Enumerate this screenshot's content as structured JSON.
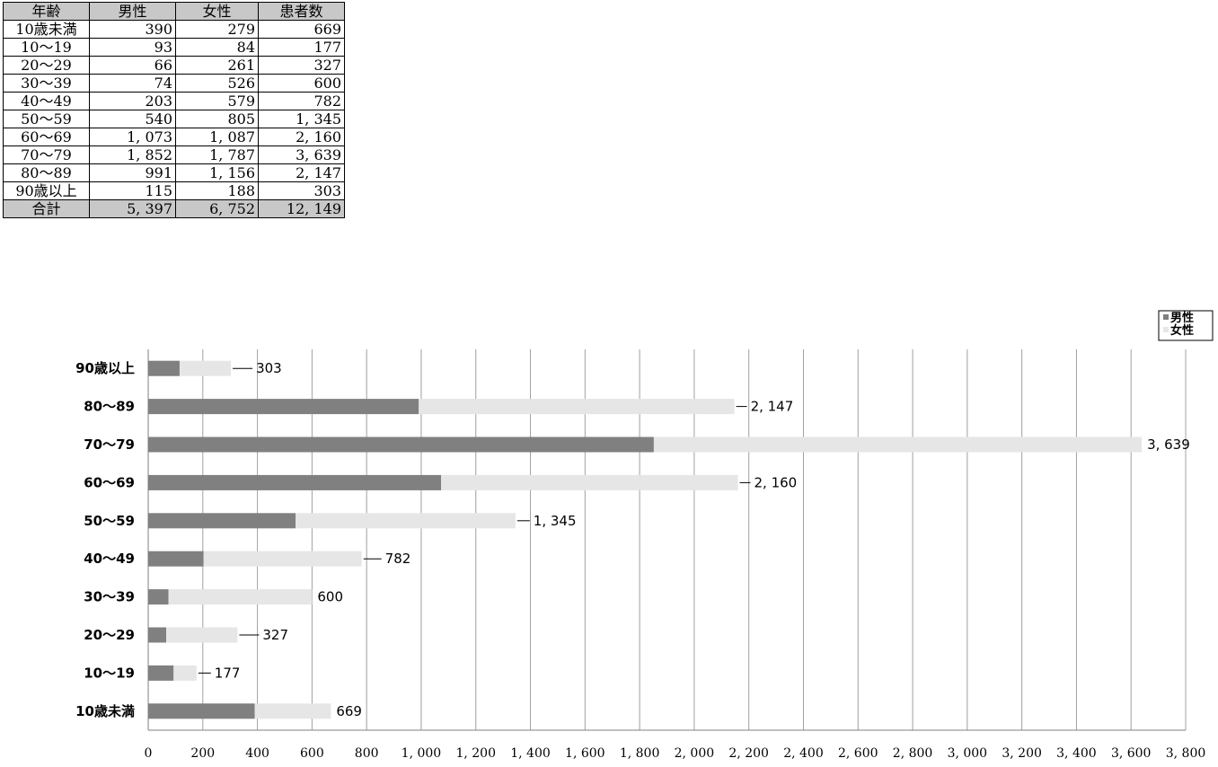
{
  "table": {
    "headers": [
      "年齢",
      "男性",
      "女性",
      "患者数"
    ],
    "rows": [
      {
        "age": "10歳未満",
        "male": "390",
        "female": "279",
        "total": "669"
      },
      {
        "age": "10～19",
        "male": "93",
        "female": "84",
        "total": "177"
      },
      {
        "age": "20～29",
        "male": "66",
        "female": "261",
        "total": "327"
      },
      {
        "age": "30～39",
        "male": "74",
        "female": "526",
        "total": "600"
      },
      {
        "age": "40～49",
        "male": "203",
        "female": "579",
        "total": "782"
      },
      {
        "age": "50～59",
        "male": "540",
        "female": "805",
        "total": "1, 345"
      },
      {
        "age": "60～69",
        "male": "1, 073",
        "female": "1, 087",
        "total": "2, 160"
      },
      {
        "age": "70～79",
        "male": "1, 852",
        "female": "1, 787",
        "total": "3, 639"
      },
      {
        "age": "80～89",
        "male": "991",
        "female": "1, 156",
        "total": "2, 147"
      },
      {
        "age": "90歳以上",
        "male": "115",
        "female": "188",
        "total": "303"
      }
    ],
    "total_row": {
      "age": "合計",
      "male": "5, 397",
      "female": "6, 752",
      "total": "12, 149"
    }
  },
  "chart_data": {
    "type": "bar",
    "orientation": "horizontal",
    "stacked": true,
    "categories": [
      "10歳未満",
      "10～19",
      "20～29",
      "30～39",
      "40～49",
      "50～59",
      "60～69",
      "70～79",
      "80～89",
      "90歳以上"
    ],
    "series": [
      {
        "name": "男性",
        "values": [
          390,
          93,
          66,
          74,
          203,
          540,
          1073,
          1852,
          991,
          115
        ],
        "color": "#808080"
      },
      {
        "name": "女性",
        "values": [
          279,
          84,
          261,
          526,
          579,
          805,
          1087,
          1787,
          1156,
          188
        ],
        "color": "#e6e6e6"
      }
    ],
    "totals": [
      669,
      177,
      327,
      600,
      782,
      1345,
      2160,
      3639,
      2147,
      303
    ],
    "total_labels": [
      "669",
      "177",
      "327",
      "600",
      "782",
      "1, 345",
      "2, 160",
      "3, 639",
      "2, 147",
      "303"
    ],
    "xlim": [
      0,
      3800
    ],
    "x_ticks": [
      0,
      200,
      400,
      600,
      800,
      1000,
      1200,
      1400,
      1600,
      1800,
      2000,
      2200,
      2400,
      2600,
      2800,
      3000,
      3200,
      3400,
      3600,
      3800
    ],
    "x_tick_labels": [
      "0",
      "200",
      "400",
      "600",
      "800",
      "1, 000",
      "1, 200",
      "1, 400",
      "1, 600",
      "1, 800",
      "2, 000",
      "2, 200",
      "2, 400",
      "2, 600",
      "2, 800",
      "3, 000",
      "3, 200",
      "3, 400",
      "3, 600",
      "3, 800"
    ],
    "grid": true,
    "legend": "top-right",
    "title": "",
    "xlabel": "",
    "ylabel": ""
  }
}
